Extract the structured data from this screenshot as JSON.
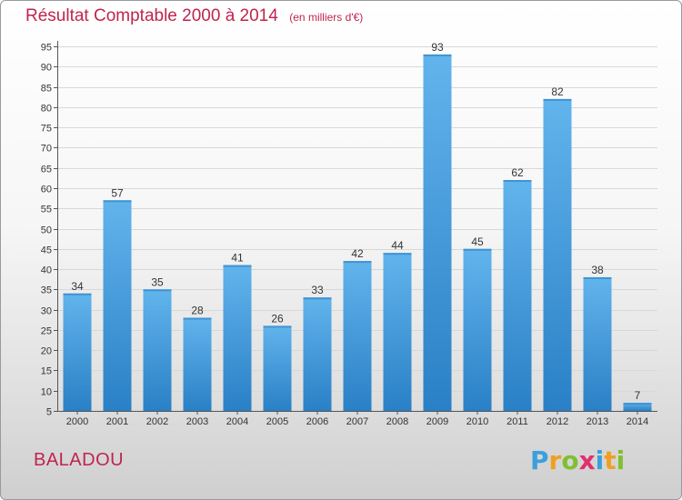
{
  "chart_data": {
    "type": "bar",
    "title": "Résultat Comptable 2000 à 2014",
    "subtitle": "(en milliers d'€)",
    "categories": [
      "2000",
      "2001",
      "2002",
      "2003",
      "2004",
      "2005",
      "2006",
      "2007",
      "2008",
      "2009",
      "2010",
      "2011",
      "2012",
      "2013",
      "2014"
    ],
    "values": [
      34,
      57,
      35,
      28,
      41,
      26,
      33,
      42,
      44,
      93,
      45,
      62,
      82,
      38,
      7
    ],
    "ylim": [
      5,
      95
    ],
    "yticks": [
      5,
      10,
      15,
      20,
      25,
      30,
      35,
      40,
      45,
      50,
      55,
      60,
      65,
      70,
      75,
      80,
      85,
      90,
      95
    ],
    "grid": true,
    "xlabel": "",
    "ylabel": ""
  },
  "commune": "BALADOU",
  "logo": {
    "letters": [
      "P",
      "r",
      "o",
      "x",
      "i",
      "t",
      "i"
    ],
    "colors": [
      "#3aa0dc",
      "#f0a020",
      "#80c030",
      "#e03070",
      "#3aa0dc",
      "#f0a020",
      "#80c030"
    ]
  },
  "colors": {
    "bar_light": "#5fb2ea",
    "bar_dark": "#2e86cb",
    "accent": "#c0244f"
  }
}
